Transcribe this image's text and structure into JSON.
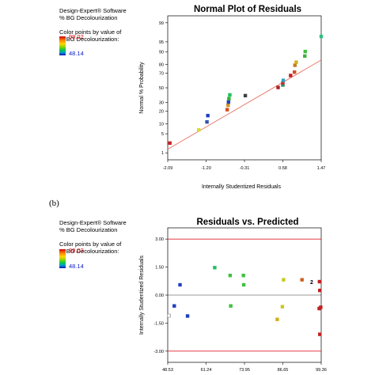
{
  "panel_a": {
    "software": "Design-Expert® Software",
    "response": "% BG Decolourization",
    "color_label": [
      "Color points by value of",
      "% BG Decolourization:"
    ],
    "color_high": "99.02",
    "color_low": "48.14"
  },
  "panel_b": {
    "label": "(b)",
    "software": "Design-Expert® Software",
    "response": "% BG Decolourization",
    "color_label": [
      "Color points by value of",
      "% BG Decolourization:"
    ],
    "color_high": "99.02",
    "color_low": "48.14"
  },
  "colors": {
    "ref_line": "#e87060",
    "limit_line": "#e0202a",
    "high": "#d40000",
    "low": "#1020c0"
  },
  "chart_data": [
    {
      "type": "scatter",
      "title": "Normal Plot of Residuals",
      "xlabel": "Internally Studentized Residuals",
      "ylabel": "Normal % Probability",
      "x_ticks": [
        "-2.09",
        "-1.20",
        "-0.31",
        "0.58",
        "1.47"
      ],
      "y_ticks": [
        "1",
        "5",
        "10",
        "20",
        "30",
        "50",
        "70",
        "80",
        "90",
        "95",
        "99"
      ],
      "xlim": [
        -2.09,
        1.47
      ],
      "y_scale": "normal-probability",
      "reference_line": {
        "x": [
          -2.09,
          1.47
        ],
        "y": [
          1.4,
          84
        ]
      },
      "points": [
        {
          "x": -2.04,
          "y": 2.4,
          "color": "#d42020"
        },
        {
          "x": -1.37,
          "y": 6.6,
          "color": "#dcdc30"
        },
        {
          "x": -1.18,
          "y": 11.1,
          "color": "#3050b0"
        },
        {
          "x": -1.16,
          "y": 16,
          "color": "#2040c0"
        },
        {
          "x": -0.71,
          "y": 21.7,
          "color": "#d05020"
        },
        {
          "x": -0.69,
          "y": 26.6,
          "color": "#d09020"
        },
        {
          "x": -0.68,
          "y": 30.6,
          "color": "#2040c0"
        },
        {
          "x": -0.67,
          "y": 35,
          "color": "#30b030"
        },
        {
          "x": -0.65,
          "y": 40,
          "color": "#20c060"
        },
        {
          "x": -0.29,
          "y": 39,
          "color": "#404040"
        },
        {
          "x": 0.47,
          "y": 50.5,
          "color": "#b02020"
        },
        {
          "x": 0.58,
          "y": 54,
          "color": "#209070"
        },
        {
          "x": 0.58,
          "y": 57,
          "color": "#c03030"
        },
        {
          "x": 0.59,
          "y": 60.5,
          "color": "#30a0c0"
        },
        {
          "x": 0.76,
          "y": 67,
          "color": "#c02020"
        },
        {
          "x": 0.85,
          "y": 71.3,
          "color": "#d05020"
        },
        {
          "x": 0.86,
          "y": 79,
          "color": "#c08020"
        },
        {
          "x": 0.89,
          "y": 82,
          "color": "#d0b020"
        },
        {
          "x": 1.09,
          "y": 87.2,
          "color": "#40b040"
        },
        {
          "x": 1.1,
          "y": 90.3,
          "color": "#40c040"
        },
        {
          "x": 1.47,
          "y": 96.7,
          "color": "#30c080"
        }
      ]
    },
    {
      "type": "scatter",
      "title": "Residuals vs. Predicted",
      "xlabel": "",
      "ylabel": "Internally Studentized Residuals",
      "x_ticks": [
        "48.53",
        "61.24",
        "73.95",
        "86.65",
        "99.36"
      ],
      "y_ticks": [
        "3.00",
        "1.50",
        "0.00",
        "-1.50",
        "-3.00"
      ],
      "xlim": [
        48.53,
        99.36
      ],
      "ylim": [
        -3.6,
        3.6
      ],
      "limit_lines": [
        3.0,
        -3.0
      ],
      "annotation": {
        "text": "2",
        "x": 97.5,
        "y": 0.72
      },
      "points": [
        {
          "x": 48.9,
          "y": -1.1,
          "color": "#808080",
          "hollow": true
        },
        {
          "x": 50.7,
          "y": -0.58,
          "color": "#2040c0"
        },
        {
          "x": 52.6,
          "y": 0.55,
          "color": "#2040c0"
        },
        {
          "x": 55.1,
          "y": -1.12,
          "color": "#2040c0"
        },
        {
          "x": 64.1,
          "y": 1.47,
          "color": "#20c060"
        },
        {
          "x": 69.2,
          "y": 1.05,
          "color": "#40c040"
        },
        {
          "x": 69.4,
          "y": -0.58,
          "color": "#40c040"
        },
        {
          "x": 73.6,
          "y": 1.05,
          "color": "#40c040"
        },
        {
          "x": 73.7,
          "y": 0.55,
          "color": "#40c040"
        },
        {
          "x": 86.9,
          "y": 0.82,
          "color": "#c8c820"
        },
        {
          "x": 86.5,
          "y": -0.62,
          "color": "#c8c820"
        },
        {
          "x": 84.8,
          "y": -1.3,
          "color": "#d0b020"
        },
        {
          "x": 93.0,
          "y": 0.82,
          "color": "#d06020"
        },
        {
          "x": 98.8,
          "y": 0.72,
          "color": "#c02020"
        },
        {
          "x": 98.9,
          "y": 0.25,
          "color": "#c02020"
        },
        {
          "x": 98.7,
          "y": -0.72,
          "color": "#c02020"
        },
        {
          "x": 99.2,
          "y": -0.65,
          "color": "#c02020"
        },
        {
          "x": 98.9,
          "y": -2.1,
          "color": "#c02020"
        }
      ]
    }
  ]
}
